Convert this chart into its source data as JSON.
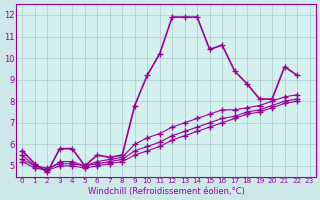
{
  "background_color": "#cce8e8",
  "plot_bg_color": "#d4f0ef",
  "grid_color": "#aacccc",
  "line_color": "#990099",
  "series": [
    [
      5.7,
      5.1,
      4.7,
      5.8,
      5.8,
      5.0,
      5.5,
      5.4,
      5.5,
      7.8,
      9.2,
      10.2,
      11.9,
      11.9,
      11.9,
      10.4,
      10.6,
      9.4,
      8.8,
      8.1,
      8.1,
      9.6,
      9.2
    ],
    [
      5.5,
      5.0,
      4.8,
      5.2,
      5.2,
      5.0,
      5.2,
      5.3,
      5.4,
      6.0,
      6.3,
      6.5,
      6.8,
      7.0,
      7.2,
      7.4,
      7.6,
      7.6,
      7.7,
      7.8,
      8.0,
      8.2,
      8.3
    ],
    [
      5.3,
      5.0,
      4.9,
      5.1,
      5.1,
      5.0,
      5.1,
      5.2,
      5.3,
      5.7,
      5.9,
      6.1,
      6.4,
      6.6,
      6.8,
      7.0,
      7.2,
      7.3,
      7.5,
      7.6,
      7.8,
      8.0,
      8.1
    ],
    [
      5.2,
      4.9,
      4.8,
      5.0,
      5.0,
      4.9,
      5.0,
      5.1,
      5.2,
      5.5,
      5.7,
      5.9,
      6.2,
      6.4,
      6.6,
      6.8,
      7.0,
      7.2,
      7.4,
      7.5,
      7.7,
      7.9,
      8.0
    ]
  ],
  "x_ticks": [
    0,
    1,
    2,
    3,
    4,
    5,
    6,
    7,
    8,
    9,
    10,
    11,
    12,
    13,
    14,
    15,
    16,
    17,
    18,
    19,
    20,
    21,
    22,
    23
  ],
  "y_ticks": [
    5,
    6,
    7,
    8,
    9,
    10,
    11,
    12
  ],
  "ylim": [
    4.5,
    12.5
  ],
  "xlim": [
    -0.5,
    23.5
  ],
  "xlabel": "Windchill (Refroidissement éolien,°C)"
}
